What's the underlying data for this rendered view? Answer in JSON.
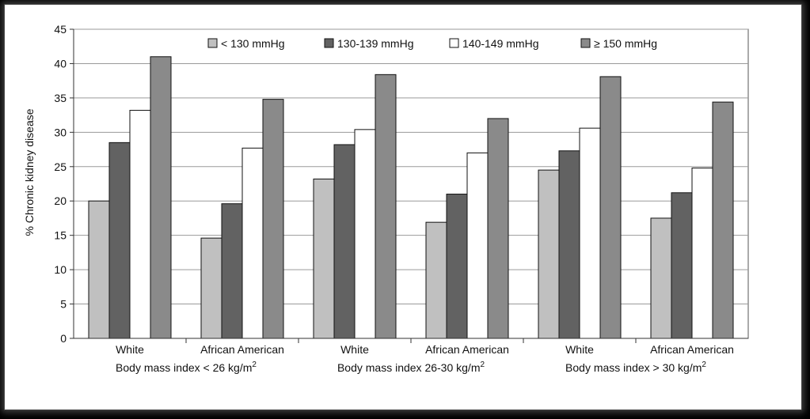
{
  "chart_data": {
    "type": "bar",
    "title": "",
    "xlabel": "",
    "ylabel": "% Chronic kidney disease",
    "ylim": [
      0,
      45
    ],
    "yticks": [
      0,
      5,
      10,
      15,
      20,
      25,
      30,
      35,
      40,
      45
    ],
    "grid": true,
    "legend_position": "top",
    "categories": [
      "White",
      "African American",
      "White",
      "African American",
      "White",
      "African American"
    ],
    "groups": [
      {
        "label": "Body mass index < 26 kg/m²",
        "sup_prefix": "Body mass index < 26 kg/m",
        "sup": "2"
      },
      {
        "label": "Body mass index 26-30 kg/m²",
        "sup_prefix": "Body mass index 26-30 kg/m",
        "sup": "2"
      },
      {
        "label": "Body mass index > 30 kg/m²",
        "sup_prefix": "Body mass index > 30 kg/m",
        "sup": "2"
      }
    ],
    "series": [
      {
        "name": "< 130 mmHg",
        "color": "#c0c0c0",
        "values": [
          20.0,
          14.6,
          23.2,
          16.9,
          24.5,
          17.5
        ]
      },
      {
        "name": "130-139 mmHg",
        "color": "#626262",
        "values": [
          28.5,
          19.6,
          28.2,
          21.0,
          27.3,
          21.2
        ]
      },
      {
        "name": "140-149 mmHg",
        "color": "#ffffff",
        "values": [
          33.2,
          27.7,
          30.4,
          27.0,
          30.6,
          24.8
        ]
      },
      {
        "name": "≥ 150 mmHg",
        "color": "#8a8a8a",
        "values": [
          41.0,
          34.8,
          38.4,
          32.0,
          38.1,
          34.4
        ]
      }
    ]
  }
}
